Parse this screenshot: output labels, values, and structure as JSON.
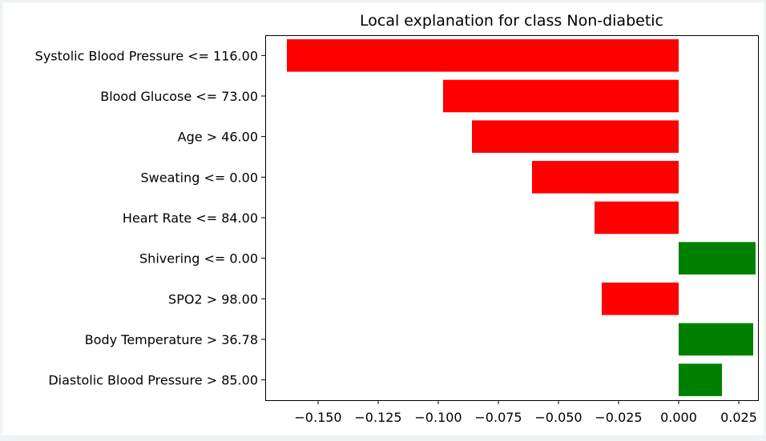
{
  "chart_data": {
    "type": "bar",
    "orientation": "horizontal",
    "title": "Local explanation for class Non-diabetic",
    "categories": [
      "Systolic Blood Pressure <= 116.00",
      "Blood Glucose <= 73.00",
      "Age > 46.00",
      "Sweating <= 0.00",
      "Heart Rate <= 84.00",
      "Shivering <= 0.00",
      "SPO2 > 98.00",
      "Body Temperature > 36.78",
      "Diastolic Blood Pressure > 85.00"
    ],
    "values": [
      -0.163,
      -0.098,
      -0.086,
      -0.061,
      -0.035,
      0.032,
      -0.032,
      0.031,
      0.018
    ],
    "xlim": [
      -0.172,
      0.033
    ],
    "xticks": [
      -0.15,
      -0.125,
      -0.1,
      -0.075,
      -0.05,
      -0.025,
      0.0,
      0.025
    ],
    "xtick_labels": [
      "−0.150",
      "−0.125",
      "−0.100",
      "−0.075",
      "−0.050",
      "−0.025",
      "0.000",
      "0.025"
    ],
    "colors": {
      "positive": "#008000",
      "negative": "#ff0000"
    },
    "grid": false,
    "xlabel": "",
    "ylabel": ""
  }
}
